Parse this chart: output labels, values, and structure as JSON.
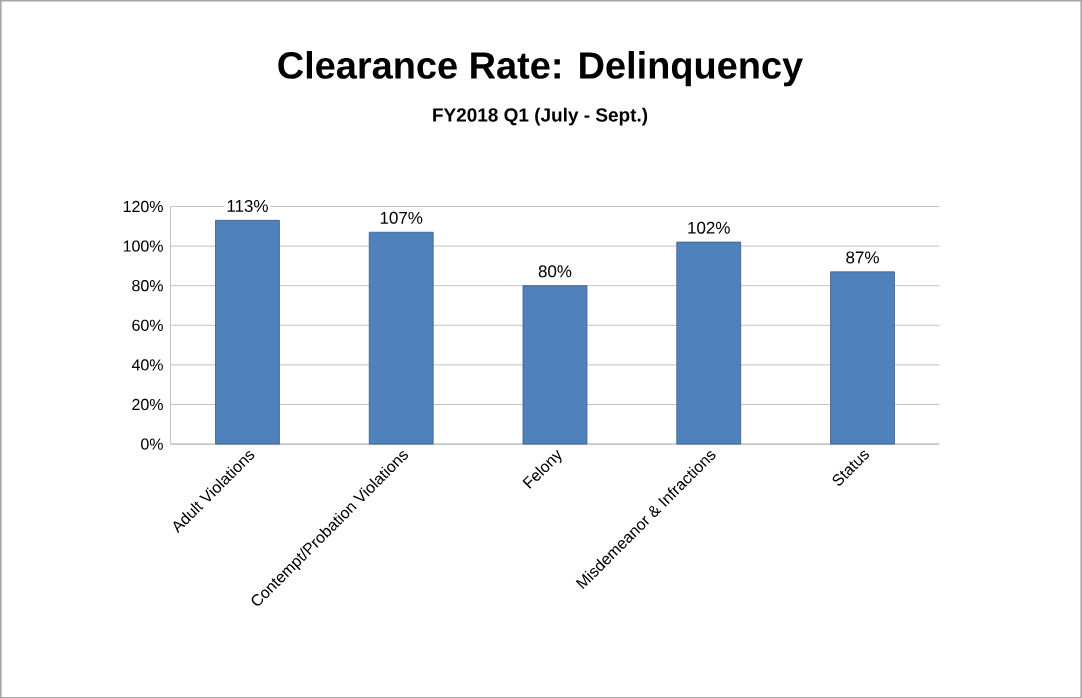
{
  "chart_data": {
    "type": "bar",
    "title": "Clearance Rate:  Delinquency",
    "subtitle": "FY2018 Q1 (July - Sept.)",
    "categories": [
      "Adult Violations",
      "Contempt/Probation Violations",
      "Felony",
      "Misdemeanor & Infractions",
      "Status"
    ],
    "values": [
      113,
      107,
      80,
      102,
      87
    ],
    "value_labels": [
      "113%",
      "107%",
      "80%",
      "102%",
      "87%"
    ],
    "color": "#4f81bd",
    "ylim": [
      0,
      120
    ],
    "yticks": [
      {
        "value": 0,
        "label": "0%"
      },
      {
        "value": 20,
        "label": "20%"
      },
      {
        "value": 40,
        "label": "40%"
      },
      {
        "value": 60,
        "label": "60%"
      },
      {
        "value": 80,
        "label": "80%"
      },
      {
        "value": 100,
        "label": "100%"
      },
      {
        "value": 120,
        "label": "120%"
      }
    ],
    "grid": "y"
  }
}
